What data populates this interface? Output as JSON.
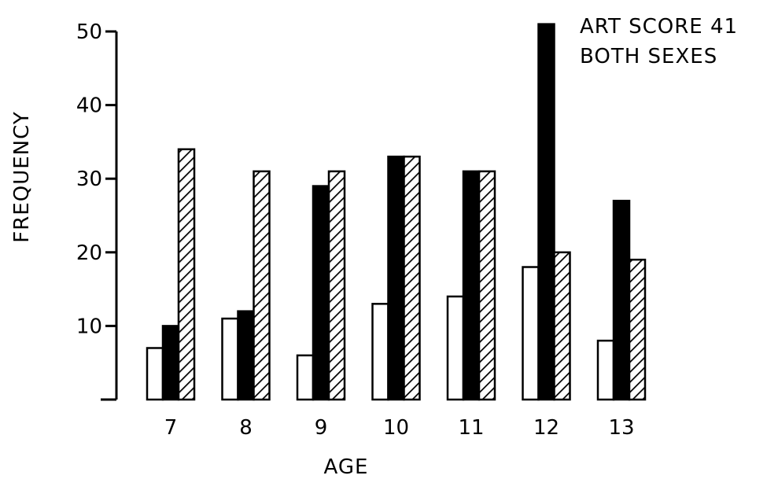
{
  "chart_data": {
    "type": "bar",
    "title_lines": [
      "ART SCORE 41",
      "BOTH SEXES"
    ],
    "xlabel": "AGE",
    "ylabel": "FREQUENCY",
    "categories": [
      "7",
      "8",
      "9",
      "10",
      "11",
      "12",
      "13"
    ],
    "ylim": [
      0,
      50
    ],
    "yticks": [
      "10",
      "20",
      "30",
      "40",
      "50"
    ],
    "grid": false,
    "series": [
      {
        "pattern": "open",
        "values": [
          7,
          11,
          6,
          13,
          14,
          18,
          8
        ]
      },
      {
        "pattern": "solid",
        "values": [
          10,
          12,
          29,
          33,
          31,
          51,
          27
        ]
      },
      {
        "pattern": "hatched",
        "values": [
          34,
          31,
          31,
          33,
          31,
          20,
          19
        ]
      }
    ]
  },
  "colors": {
    "ink": "#000000",
    "paper": "#ffffff"
  }
}
